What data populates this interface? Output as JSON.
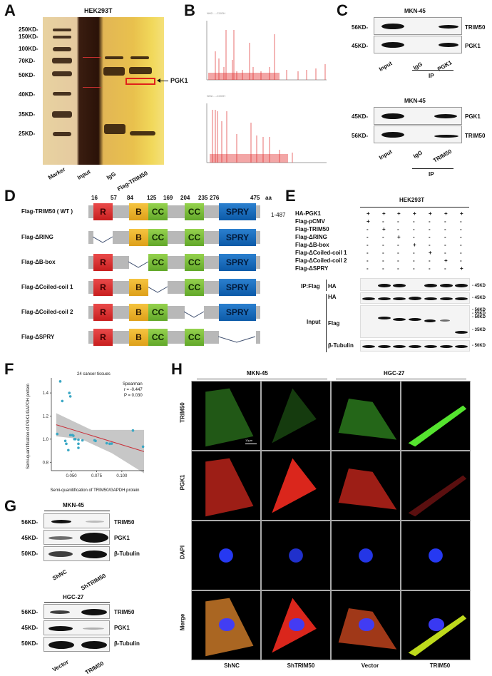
{
  "figure": {
    "panels": [
      "A",
      "B",
      "C",
      "D",
      "E",
      "F",
      "G",
      "H"
    ]
  },
  "panelA": {
    "label": "A",
    "title": "HEK293T",
    "mw_markers": [
      "250KD-",
      "150KD-",
      "100KD-",
      "70KD-",
      "50KD-",
      "40KD-",
      "35KD-",
      "25KD-"
    ],
    "lanes": [
      "Marker",
      "Input",
      "IgG",
      "Flag-TRIM50"
    ],
    "arrow_label": "PGK1",
    "highlight_color": "#e0201a"
  },
  "panelB": {
    "label": "B",
    "spectra": [
      {
        "name": "spectrum-1",
        "y_ticks": [
          "100",
          "75",
          "50",
          "25",
          "0"
        ]
      },
      {
        "name": "spectrum-2",
        "y_ticks": [
          "100",
          "75",
          "50",
          "25",
          "0"
        ]
      }
    ]
  },
  "panelC": {
    "label": "C",
    "blots": [
      {
        "title": "MKN-45",
        "rows": [
          {
            "mw": "56KD-",
            "protein": "TRIM50"
          },
          {
            "mw": "45KD-",
            "protein": "PGK1"
          }
        ],
        "lanes": [
          "Input",
          "IgG",
          "PGK1"
        ],
        "group_label": "IP"
      },
      {
        "title": "MKN-45",
        "rows": [
          {
            "mw": "45KD-",
            "protein": "PGK1"
          },
          {
            "mw": "56KD-",
            "protein": "TRIM50"
          }
        ],
        "lanes": [
          "Input",
          "IgG",
          "TRIM50"
        ],
        "group_label": "IP"
      }
    ]
  },
  "panelD": {
    "label": "D",
    "positions": [
      "16",
      "57",
      "84",
      "125",
      "169",
      "204",
      "235",
      "276",
      "475"
    ],
    "unit": "aa",
    "range": "1-487",
    "constructs": [
      {
        "name": "Flag-TRIM50 ( WT )",
        "domains": [
          "R",
          "B",
          "CC",
          "CC",
          "SPRY"
        ]
      },
      {
        "name": "Flag-ΔRING",
        "domains": [
          "B",
          "CC",
          "CC",
          "SPRY"
        ]
      },
      {
        "name": "Flag-ΔB-box",
        "domains": [
          "R",
          "CC",
          "CC",
          "SPRY"
        ]
      },
      {
        "name": "Flag-ΔCoiled-coil 1",
        "domains": [
          "R",
          "B",
          "CC",
          "SPRY"
        ]
      },
      {
        "name": "Flag-ΔCoiled-coil 2",
        "domains": [
          "R",
          "B",
          "CC",
          "SPRY"
        ]
      },
      {
        "name": "Flag-ΔSPRY",
        "domains": [
          "R",
          "B",
          "CC",
          "CC"
        ]
      }
    ],
    "domain_colors": {
      "R": "#d83030",
      "B": "#e8b12c",
      "CC": "#7cbf3c",
      "SPRY": "#1a6cbf",
      "linker": "#b8b8b8"
    }
  },
  "panelE": {
    "label": "E",
    "title": "HEK293T",
    "conditions": [
      {
        "name": "HA-PGK1",
        "values": [
          "+",
          "+",
          "+",
          "+",
          "+",
          "+",
          "+"
        ]
      },
      {
        "name": "Flag-pCMV",
        "values": [
          "+",
          "-",
          "-",
          "-",
          "-",
          "-",
          "-"
        ]
      },
      {
        "name": "Flag-TRIM50",
        "values": [
          "-",
          "+",
          "-",
          "-",
          "-",
          "-",
          "-"
        ]
      },
      {
        "name": "Flag-ΔRING",
        "values": [
          "-",
          "-",
          "+",
          "-",
          "-",
          "-",
          "-"
        ]
      },
      {
        "name": "Flag-ΔB-box",
        "values": [
          "-",
          "-",
          "-",
          "+",
          "-",
          "-",
          "-"
        ]
      },
      {
        "name": "Flag-ΔCoiled-coil 1",
        "values": [
          "-",
          "-",
          "-",
          "-",
          "+",
          "-",
          "-"
        ]
      },
      {
        "name": "Flag-ΔCoiled-coil 2",
        "values": [
          "-",
          "-",
          "-",
          "-",
          "-",
          "+",
          "-"
        ]
      },
      {
        "name": "Flag-ΔSPRY",
        "values": [
          "-",
          "-",
          "-",
          "-",
          "-",
          "-",
          "+"
        ]
      }
    ],
    "blots": [
      {
        "group": "IP:Flag",
        "antibody": "HA",
        "mw": [
          "- 45KD"
        ]
      },
      {
        "group": "Input",
        "antibody": "HA",
        "mw": [
          "- 45KD"
        ]
      },
      {
        "group": "Input",
        "antibody": "Flag",
        "mw": [
          "- 56KD",
          "- 55KD",
          "- 50KD",
          "- 35KD"
        ]
      },
      {
        "group": "Input",
        "antibody": "β-Tubulin",
        "mw": [
          "- 50KD"
        ]
      }
    ],
    "group_labels": {
      "ip": "IP:Flag",
      "input": "Input"
    }
  },
  "panelF": {
    "label": "F"
  },
  "chart_data": {
    "type": "scatter",
    "title": "24 cancer tissues",
    "xlabel": "Semi-quanitification of TRIM50/GAPDH protein",
    "ylabel": "Semi-quanitification of PGK1/GAPDH protein",
    "xlim": [
      0.033,
      0.122
    ],
    "ylim": [
      0.74,
      1.53
    ],
    "x_ticks": [
      "0.050",
      "0.075",
      "0.100"
    ],
    "y_ticks": [
      "0.8",
      "1.0",
      "1.2",
      "1.4"
    ],
    "annotation": {
      "method": "Spearman",
      "r": "r = -0.447",
      "p": "P = 0.030"
    },
    "fit_line": {
      "x": [
        0.035,
        0.122
      ],
      "y": [
        1.125,
        0.893
      ],
      "color": "#c8303a"
    },
    "confidence_band_color": "#bdbdbd",
    "point_color": "#3aa7c4",
    "points": [
      {
        "x": 0.036,
        "y": 1.045
      },
      {
        "x": 0.039,
        "y": 1.5
      },
      {
        "x": 0.041,
        "y": 1.33
      },
      {
        "x": 0.044,
        "y": 0.985
      },
      {
        "x": 0.045,
        "y": 0.96
      },
      {
        "x": 0.047,
        "y": 0.905
      },
      {
        "x": 0.048,
        "y": 1.4
      },
      {
        "x": 0.049,
        "y": 1.37
      },
      {
        "x": 0.049,
        "y": 1.035
      },
      {
        "x": 0.051,
        "y": 1.035
      },
      {
        "x": 0.052,
        "y": 1.03
      },
      {
        "x": 0.053,
        "y": 1.0
      },
      {
        "x": 0.054,
        "y": 1.0
      },
      {
        "x": 0.057,
        "y": 0.995
      },
      {
        "x": 0.057,
        "y": 0.96
      },
      {
        "x": 0.057,
        "y": 0.925
      },
      {
        "x": 0.061,
        "y": 0.99
      },
      {
        "x": 0.073,
        "y": 0.99
      },
      {
        "x": 0.074,
        "y": 0.985
      },
      {
        "x": 0.085,
        "y": 0.965
      },
      {
        "x": 0.088,
        "y": 0.96
      },
      {
        "x": 0.09,
        "y": 0.962
      },
      {
        "x": 0.111,
        "y": 1.075
      },
      {
        "x": 0.121,
        "y": 0.935
      }
    ]
  },
  "panelG": {
    "label": "G",
    "blots": [
      {
        "title": "MKN-45",
        "rows": [
          {
            "mw": "56KD-",
            "protein": "TRIM50"
          },
          {
            "mw": "45KD-",
            "protein": "PGK1"
          },
          {
            "mw": "50KD-",
            "protein": "β-Tubulin"
          }
        ],
        "lanes": [
          "ShNC",
          "ShTRIM50"
        ]
      },
      {
        "title": "HGC-27",
        "rows": [
          {
            "mw": "56KD-",
            "protein": "TRIM50"
          },
          {
            "mw": "45KD-",
            "protein": "PGK1"
          },
          {
            "mw": "50KD-",
            "protein": "β-Tubulin"
          }
        ],
        "lanes": [
          "Vector",
          "TRIM50"
        ]
      }
    ]
  },
  "panelH": {
    "label": "H",
    "groups": [
      "MKN-45",
      "HGC-27"
    ],
    "rows": [
      "TRIM50",
      "PGK1",
      "DAPI",
      "Merge"
    ],
    "columns": [
      "ShNC",
      "ShTRIM50",
      "Vector",
      "TRIM50"
    ],
    "scale_bar": "10μm",
    "channel_colors": {
      "TRIM50": "#3fbf2a",
      "PGK1": "#d42a1e",
      "DAPI": "#2238ff",
      "Merge": "#c87a20"
    }
  }
}
